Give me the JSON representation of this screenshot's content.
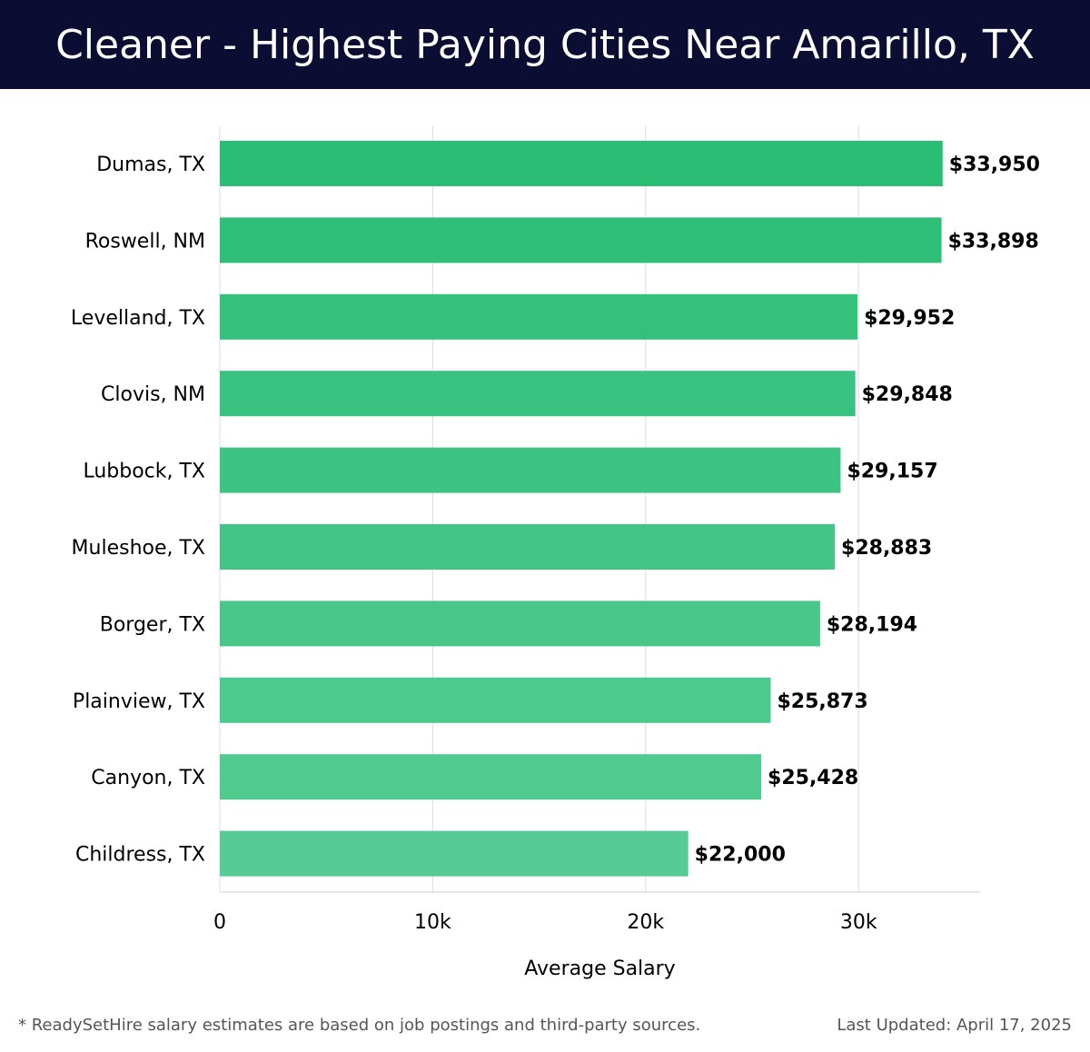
{
  "header": {
    "title": "Cleaner - Highest Paying Cities Near Amarillo, TX"
  },
  "footer": {
    "note": "* ReadySetHire salary estimates are based on job postings and third-party sources.",
    "updated": "Last Updated: April 17, 2025"
  },
  "colors": {
    "header_bg": "#0b0d33",
    "bar_dark": "#2bbd74",
    "bar_light": "#56cc94",
    "grid": "#dddddd",
    "label": "#000000"
  },
  "chart_data": {
    "type": "bar",
    "orientation": "horizontal",
    "categories": [
      "Dumas, TX",
      "Roswell, NM",
      "Levelland, TX",
      "Clovis, NM",
      "Lubbock, TX",
      "Muleshoe, TX",
      "Borger, TX",
      "Plainview, TX",
      "Canyon, TX",
      "Childress, TX"
    ],
    "values": [
      33950,
      33898,
      29952,
      29848,
      29157,
      28883,
      28194,
      25873,
      25428,
      22000
    ],
    "value_labels": [
      "$33,950",
      "$33,898",
      "$29,952",
      "$29,848",
      "$29,157",
      "$28,883",
      "$28,194",
      "$25,873",
      "$25,428",
      "$22,000"
    ],
    "xlabel": "Average Salary",
    "ylabel": "",
    "xlim": [
      0,
      35700
    ],
    "xticks": [
      0,
      10000,
      20000,
      30000
    ],
    "xtick_labels": [
      "0",
      "10k",
      "20k",
      "30k"
    ],
    "grid": true
  }
}
